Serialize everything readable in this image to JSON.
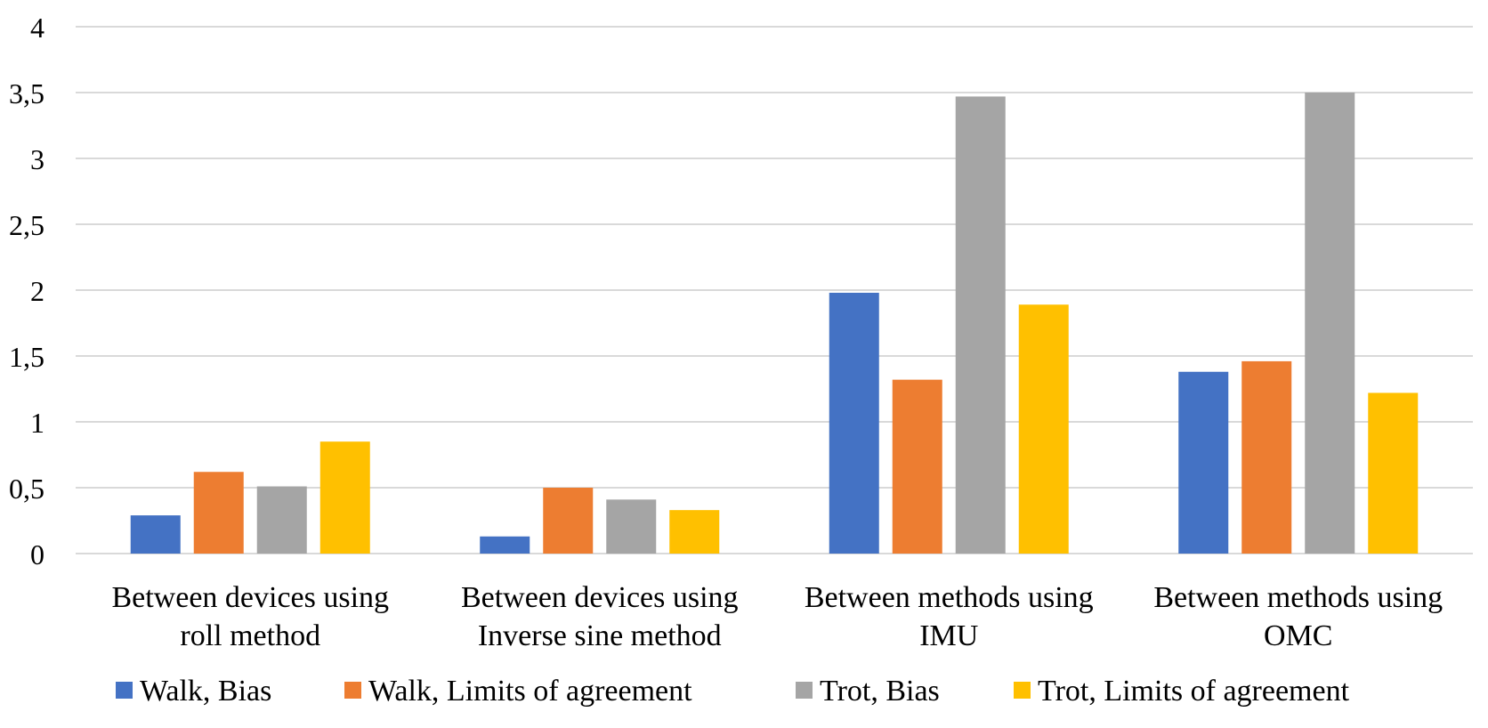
{
  "chart_data": {
    "type": "bar",
    "categories": [
      [
        "Between devices using",
        "roll method"
      ],
      [
        "Between devices using",
        "Inverse sine method"
      ],
      [
        "Between methods using",
        "IMU"
      ],
      [
        "Between methods using",
        "OMC"
      ]
    ],
    "series": [
      {
        "name": "Walk, Bias",
        "color": "#4472C4",
        "values": [
          0.29,
          0.13,
          1.98,
          1.38
        ]
      },
      {
        "name": "Walk, Limits of agreement",
        "color": "#ED7D31",
        "values": [
          0.62,
          0.5,
          1.32,
          1.46
        ]
      },
      {
        "name": "Trot, Bias",
        "color": "#A5A5A5",
        "values": [
          0.51,
          0.41,
          3.47,
          3.5
        ]
      },
      {
        "name": "Trot, Limits of agreement",
        "color": "#FFC000",
        "values": [
          0.85,
          0.33,
          1.89,
          1.22
        ]
      }
    ],
    "y_ticks": [
      "0",
      "0,5",
      "1",
      "1,5",
      "2",
      "2,5",
      "3",
      "3,5",
      "4"
    ],
    "ylim": [
      0,
      4
    ],
    "title": "",
    "xlabel": "",
    "ylabel": "",
    "grid": true,
    "legend_position": "bottom",
    "gridline_color": "#D9D9D9"
  }
}
